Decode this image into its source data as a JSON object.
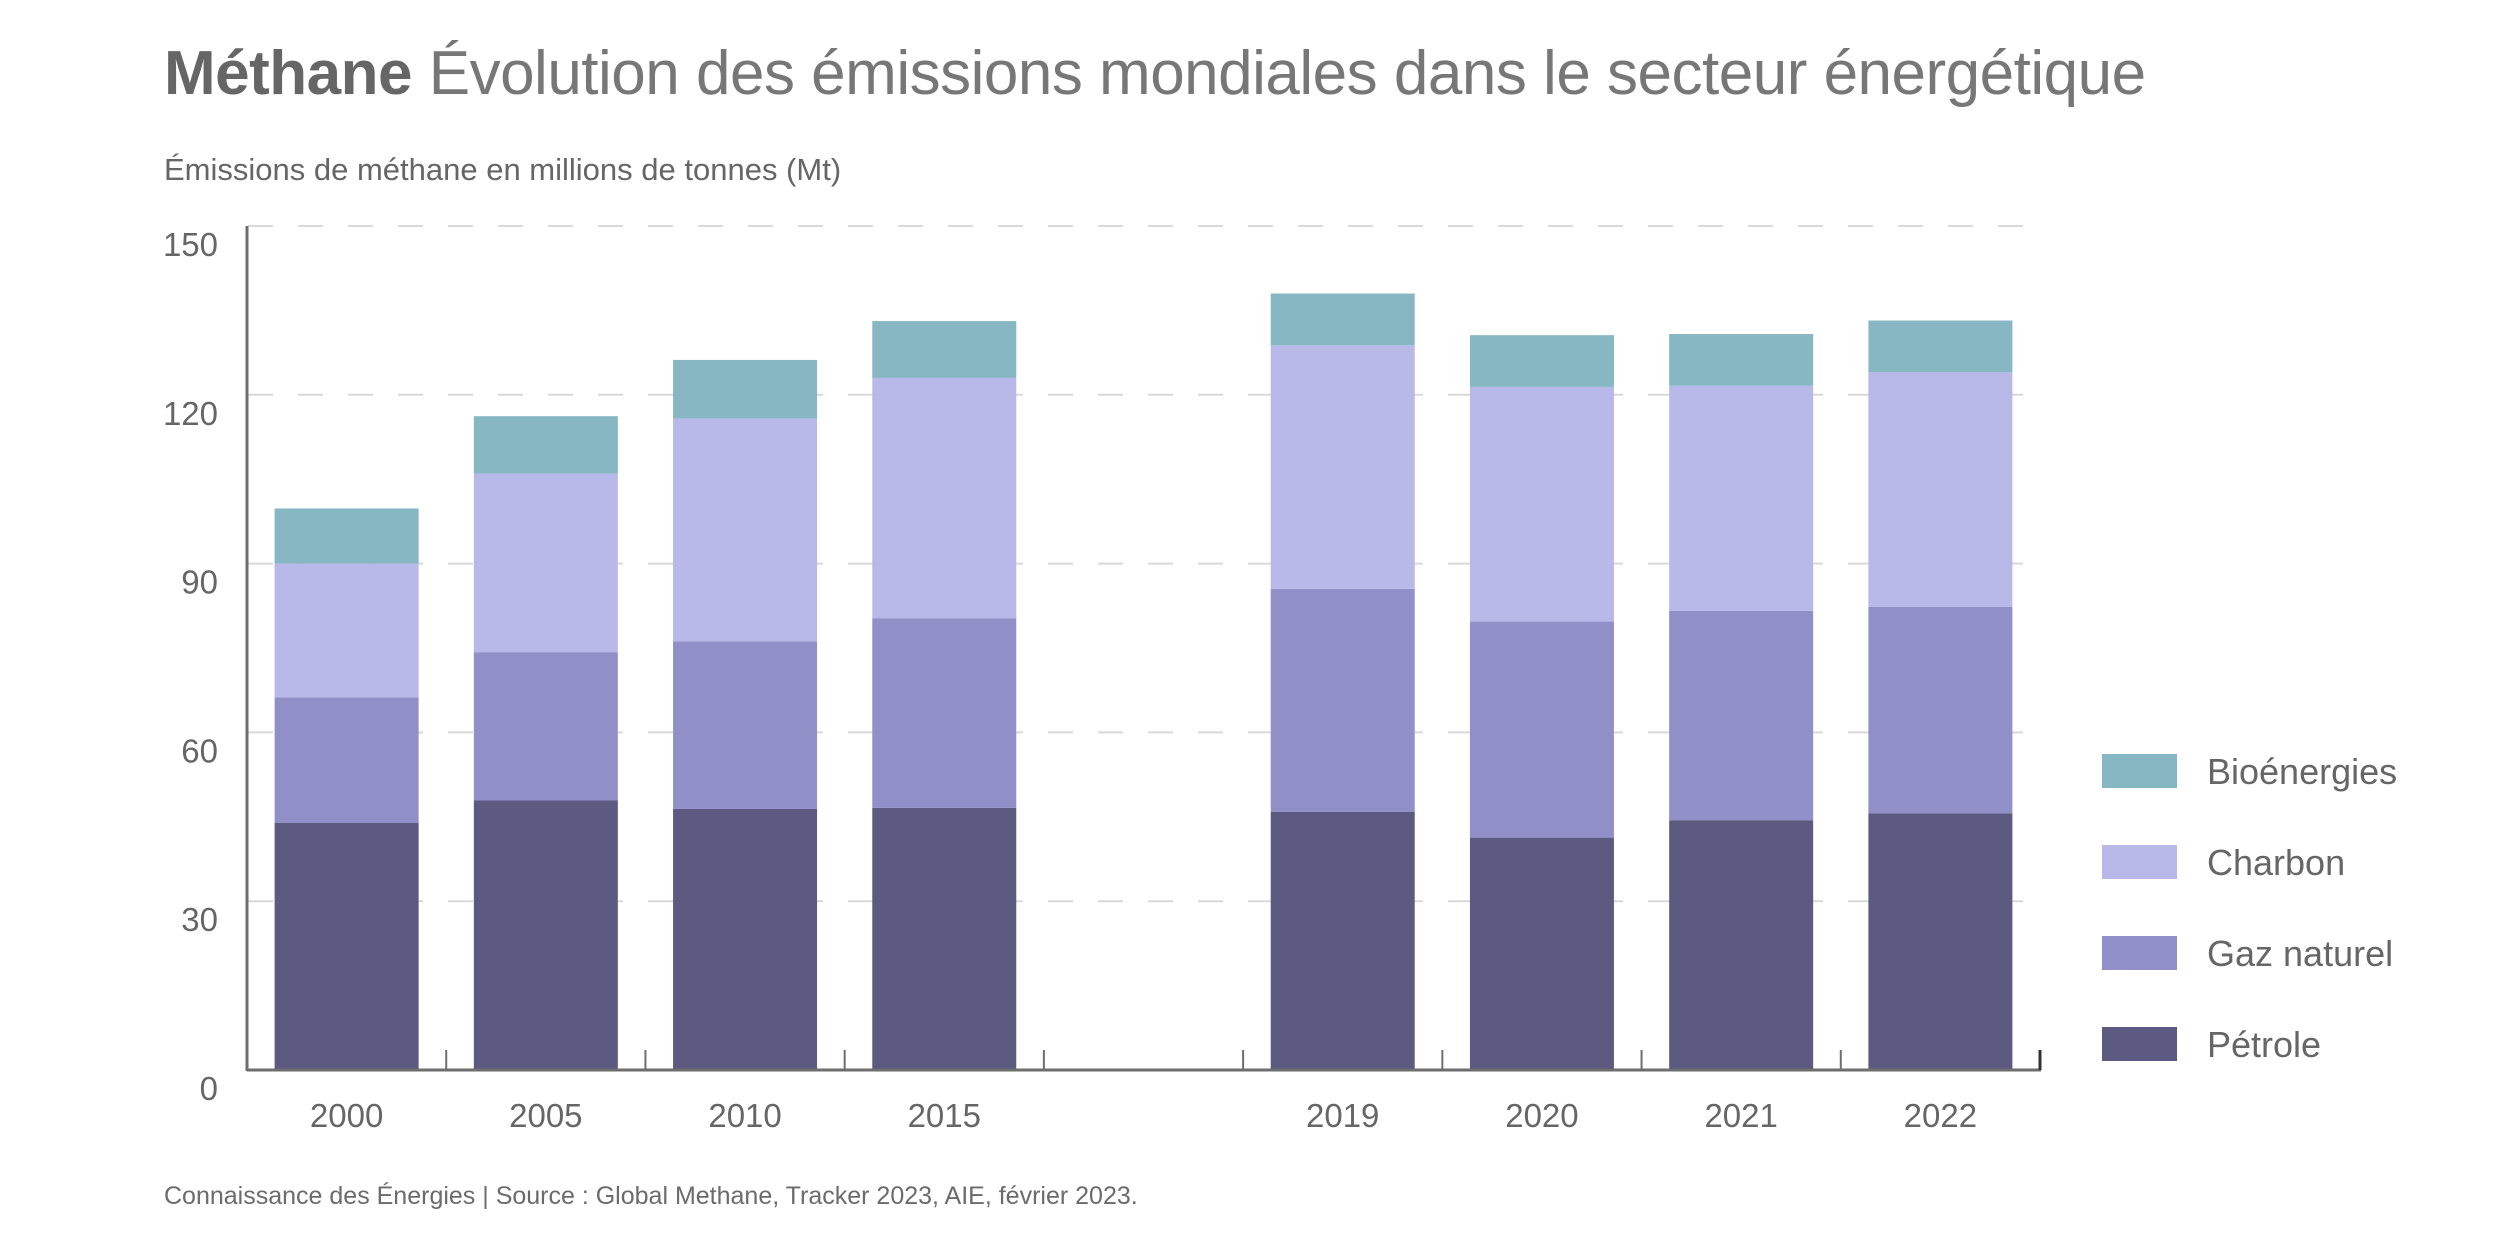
{
  "header": {
    "title_bold": "Méthane",
    "title_rest": "Évolution des émissions mondiales dans le secteur énergétique",
    "subtitle": "Émissions de méthane en millions de tonnes (Mt)"
  },
  "footer": {
    "source": "Connaissance des Énergies | Source : Global Methane, Tracker 2023, AIE, février 2023."
  },
  "chart_data": {
    "type": "bar",
    "stacked": true,
    "title": "Méthane Évolution des émissions mondiales dans le secteur énergétique",
    "subtitle": "Émissions de méthane en millions de tonnes (Mt)",
    "xlabel": "",
    "ylabel": "Émissions de méthane en millions de tonnes (Mt)",
    "categories": [
      "2000",
      "2005",
      "2010",
      "2015",
      "",
      "2019",
      "2020",
      "2021",
      "2022"
    ],
    "yticks": [
      0,
      30,
      60,
      90,
      120,
      150
    ],
    "ylim": [
      0,
      150
    ],
    "grid": "horizontal-dashed",
    "legend_position": "right",
    "series": [
      {
        "name": "Pétrole",
        "color": "#5c5a80",
        "values": [
          43.9,
          47.9,
          46.4,
          46.6,
          null,
          45.9,
          41.3,
          44.4,
          45.6
        ]
      },
      {
        "name": "Gaz naturel",
        "color": "#908fc8",
        "values": [
          22.3,
          26.3,
          29.8,
          33.7,
          null,
          39.6,
          38.4,
          37.2,
          36.7
        ]
      },
      {
        "name": "Charbon",
        "color": "#b8b9e8",
        "values": [
          23.8,
          31.8,
          39.6,
          42.7,
          null,
          43.3,
          41.7,
          40.0,
          41.7
        ]
      },
      {
        "name": "Bioénergies",
        "color": "#87b7c3",
        "values": [
          9.8,
          10.2,
          10.4,
          10.1,
          null,
          9.2,
          9.2,
          9.2,
          9.2
        ]
      }
    ],
    "legend_order": [
      "Bioénergies",
      "Charbon",
      "Gaz naturel",
      "Pétrole"
    ]
  }
}
